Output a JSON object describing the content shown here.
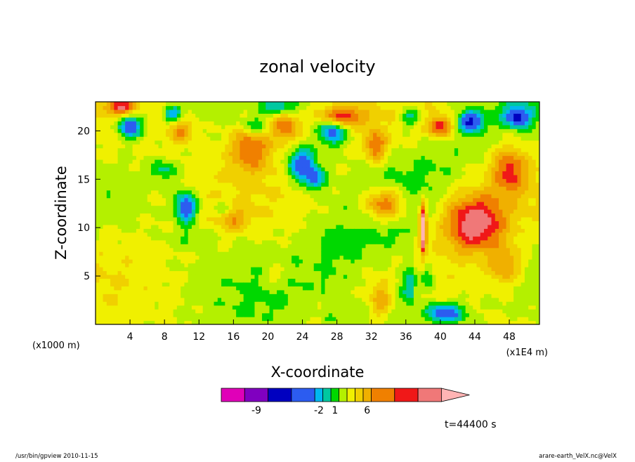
{
  "chart_data": {
    "type": "heatmap",
    "title": "zonal velocity",
    "xlabel": "X-coordinate",
    "ylabel": "Z-coordinate",
    "x_unit_left": "(x1000 m)",
    "x_unit_right": "(x1E4 m)",
    "xlim": [
      0,
      51.5
    ],
    "ylim": [
      0,
      23
    ],
    "x_ticks": [
      "4",
      "8",
      "12",
      "16",
      "20",
      "24",
      "28",
      "32",
      "36",
      "40",
      "44",
      "48"
    ],
    "x_tick_values": [
      4,
      8,
      12,
      16,
      20,
      24,
      28,
      32,
      36,
      40,
      44,
      48
    ],
    "y_ticks": [
      "5",
      "10",
      "15",
      "20"
    ],
    "y_tick_values": [
      5,
      10,
      15,
      20
    ],
    "colorbar": {
      "bins": [
        "#e000b8",
        "#8000c0",
        "#0000c0",
        "#2c5cf0",
        "#00b8f0",
        "#00c8a0",
        "#00d800",
        "#b4f000",
        "#f0f000",
        "#f0d000",
        "#f0b000",
        "#f08000",
        "#f01818",
        "#f07878",
        "#ffb4b4"
      ],
      "labels": [
        "-9",
        "-2",
        "1",
        "6"
      ],
      "label_bins": [
        1.5,
        4.5,
        6.5,
        10.5
      ]
    },
    "field_description_levels": {
      "strong_negative": "#0000c0",
      "weak_negative": "#00b8f0",
      "near_zero": "#00d800",
      "weak_positive": "#f0f000",
      "positive": "#f0b000",
      "strong_positive": "#f01818"
    }
  },
  "annotations": {
    "time": "t=44400 s",
    "footer_left": "/usr/bin/gpview  2010-11-15",
    "footer_right": "arare-earth_VelX.nc@VelX"
  }
}
